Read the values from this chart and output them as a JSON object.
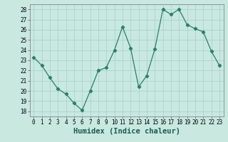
{
  "x": [
    0,
    1,
    2,
    3,
    4,
    5,
    6,
    7,
    8,
    9,
    10,
    11,
    12,
    13,
    14,
    15,
    16,
    17,
    18,
    19,
    20,
    21,
    22,
    23
  ],
  "y": [
    23.3,
    22.5,
    21.3,
    20.2,
    19.7,
    18.8,
    18.1,
    20.0,
    22.0,
    22.3,
    24.0,
    26.3,
    24.2,
    20.4,
    21.5,
    24.1,
    28.0,
    27.5,
    28.0,
    26.5,
    26.1,
    25.8,
    23.9,
    22.5
  ],
  "line_color": "#2e7d6e",
  "marker": "D",
  "marker_size": 2.2,
  "xlabel": "Humidex (Indice chaleur)",
  "xlim": [
    -0.5,
    23.5
  ],
  "ylim": [
    17.5,
    28.5
  ],
  "yticks": [
    18,
    19,
    20,
    21,
    22,
    23,
    24,
    25,
    26,
    27,
    28
  ],
  "xticks": [
    0,
    1,
    2,
    3,
    4,
    5,
    6,
    7,
    8,
    9,
    10,
    11,
    12,
    13,
    14,
    15,
    16,
    17,
    18,
    19,
    20,
    21,
    22,
    23
  ],
  "background_color": "#c8e8e0",
  "grid_color": "#aad4cc",
  "tick_label_fontsize": 5.5,
  "xlabel_fontsize": 7.5,
  "linewidth": 0.9
}
